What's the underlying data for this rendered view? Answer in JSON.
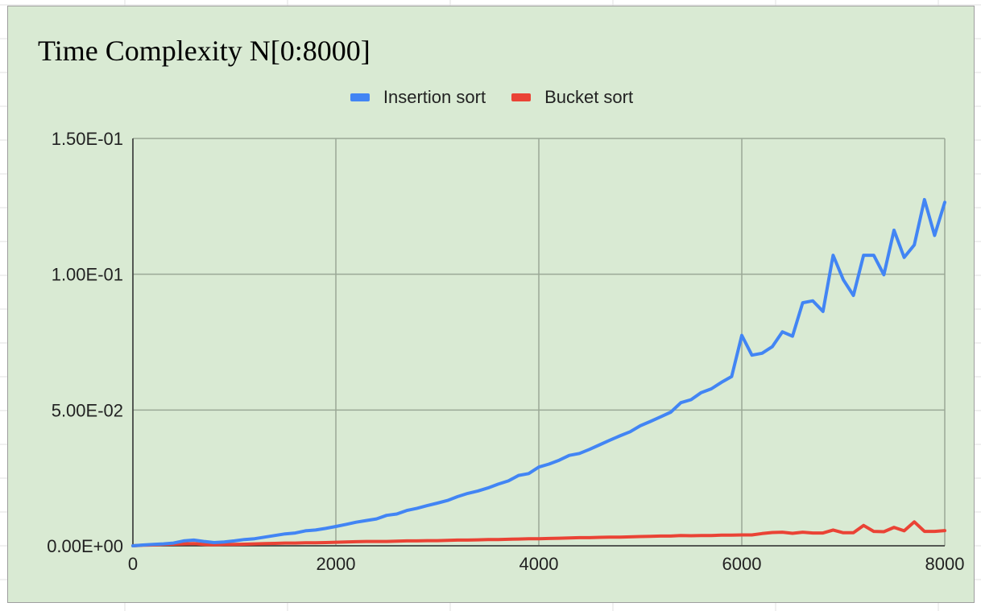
{
  "colors": {
    "background": "#d9ead3",
    "insertion": "#4285f4",
    "bucket": "#ea4335",
    "gridline": "#9aa896",
    "axis": "#333333"
  },
  "chart_data": {
    "type": "line",
    "title": "Time Complexity N[0:8000]",
    "xlabel": "",
    "ylabel": "",
    "xlim": [
      0,
      8000
    ],
    "ylim": [
      0,
      0.15
    ],
    "x_ticks": [
      0,
      2000,
      4000,
      6000,
      8000
    ],
    "x_tick_labels": [
      "0",
      "2000",
      "4000",
      "6000",
      "8000"
    ],
    "y_ticks": [
      0,
      0.05,
      0.1,
      0.15
    ],
    "y_tick_labels": [
      "0.00E+00",
      "5.00E-02",
      "1.00E-01",
      "1.50E-01"
    ],
    "grid": true,
    "legend_position": "top",
    "series": [
      {
        "name": "Insertion sort",
        "color": "#4285f4",
        "points": [
          [
            0,
            0
          ],
          [
            100,
            0.0003
          ],
          [
            200,
            0.0005
          ],
          [
            300,
            0.0007
          ],
          [
            400,
            0.001
          ],
          [
            500,
            0.0018
          ],
          [
            600,
            0.0021
          ],
          [
            700,
            0.0016
          ],
          [
            800,
            0.0012
          ],
          [
            900,
            0.0014
          ],
          [
            1000,
            0.0018
          ],
          [
            1100,
            0.0023
          ],
          [
            1200,
            0.0026
          ],
          [
            1300,
            0.0032
          ],
          [
            1400,
            0.0038
          ],
          [
            1500,
            0.0044
          ],
          [
            1600,
            0.0047
          ],
          [
            1700,
            0.0055
          ],
          [
            1800,
            0.0058
          ],
          [
            1900,
            0.0064
          ],
          [
            2000,
            0.0071
          ],
          [
            2100,
            0.0079
          ],
          [
            2200,
            0.0087
          ],
          [
            2300,
            0.0093
          ],
          [
            2400,
            0.0099
          ],
          [
            2500,
            0.0112
          ],
          [
            2600,
            0.0117
          ],
          [
            2700,
            0.013
          ],
          [
            2800,
            0.0138
          ],
          [
            2900,
            0.0148
          ],
          [
            3000,
            0.0157
          ],
          [
            3100,
            0.0167
          ],
          [
            3200,
            0.0181
          ],
          [
            3300,
            0.0193
          ],
          [
            3400,
            0.0202
          ],
          [
            3500,
            0.0213
          ],
          [
            3600,
            0.0227
          ],
          [
            3700,
            0.0239
          ],
          [
            3800,
            0.0259
          ],
          [
            3900,
            0.0266
          ],
          [
            4000,
            0.029
          ],
          [
            4100,
            0.0301
          ],
          [
            4200,
            0.0315
          ],
          [
            4300,
            0.0333
          ],
          [
            4400,
            0.034
          ],
          [
            4500,
            0.0355
          ],
          [
            4600,
            0.0372
          ],
          [
            4700,
            0.0389
          ],
          [
            4800,
            0.0405
          ],
          [
            4900,
            0.042
          ],
          [
            5000,
            0.0442
          ],
          [
            5100,
            0.0458
          ],
          [
            5200,
            0.0475
          ],
          [
            5300,
            0.0492
          ],
          [
            5400,
            0.0527
          ],
          [
            5500,
            0.0538
          ],
          [
            5600,
            0.0564
          ],
          [
            5700,
            0.0578
          ],
          [
            5800,
            0.0602
          ],
          [
            5900,
            0.0623
          ],
          [
            6000,
            0.0775
          ],
          [
            6100,
            0.0702
          ],
          [
            6200,
            0.0709
          ],
          [
            6300,
            0.0733
          ],
          [
            6400,
            0.0788
          ],
          [
            6500,
            0.0772
          ],
          [
            6600,
            0.0895
          ],
          [
            6700,
            0.0902
          ],
          [
            6800,
            0.0863
          ],
          [
            6900,
            0.107
          ],
          [
            7000,
            0.098
          ],
          [
            7100,
            0.0922
          ],
          [
            7200,
            0.107
          ],
          [
            7300,
            0.107
          ],
          [
            7400,
            0.0998
          ],
          [
            7500,
            0.1162
          ],
          [
            7600,
            0.1062
          ],
          [
            7700,
            0.1108
          ],
          [
            7800,
            0.1275
          ],
          [
            7900,
            0.1143
          ],
          [
            8000,
            0.1265
          ]
        ]
      },
      {
        "name": "Bucket sort",
        "color": "#ea4335",
        "points": [
          [
            0,
            0
          ],
          [
            100,
            0.0002
          ],
          [
            200,
            0.0003
          ],
          [
            300,
            0.0005
          ],
          [
            400,
            0.0006
          ],
          [
            500,
            0.0007
          ],
          [
            600,
            0.0008
          ],
          [
            700,
            0.0005
          ],
          [
            800,
            0.0004
          ],
          [
            900,
            0.0005
          ],
          [
            1000,
            0.0005
          ],
          [
            1100,
            0.0006
          ],
          [
            1200,
            0.0007
          ],
          [
            1300,
            0.0008
          ],
          [
            1400,
            0.0009
          ],
          [
            1500,
            0.001
          ],
          [
            1600,
            0.001
          ],
          [
            1700,
            0.0011
          ],
          [
            1800,
            0.0011
          ],
          [
            1900,
            0.0012
          ],
          [
            2000,
            0.0013
          ],
          [
            2100,
            0.0014
          ],
          [
            2200,
            0.0015
          ],
          [
            2300,
            0.0016
          ],
          [
            2400,
            0.0016
          ],
          [
            2500,
            0.0016
          ],
          [
            2600,
            0.0017
          ],
          [
            2700,
            0.0018
          ],
          [
            2800,
            0.0018
          ],
          [
            2900,
            0.0019
          ],
          [
            3000,
            0.0019
          ],
          [
            3100,
            0.002
          ],
          [
            3200,
            0.0021
          ],
          [
            3300,
            0.0021
          ],
          [
            3400,
            0.0022
          ],
          [
            3500,
            0.0023
          ],
          [
            3600,
            0.0023
          ],
          [
            3700,
            0.0024
          ],
          [
            3800,
            0.0025
          ],
          [
            3900,
            0.0026
          ],
          [
            4000,
            0.0026
          ],
          [
            4100,
            0.0027
          ],
          [
            4200,
            0.0028
          ],
          [
            4300,
            0.0029
          ],
          [
            4400,
            0.003
          ],
          [
            4500,
            0.003
          ],
          [
            4600,
            0.0031
          ],
          [
            4700,
            0.0032
          ],
          [
            4800,
            0.0032
          ],
          [
            4900,
            0.0033
          ],
          [
            5000,
            0.0034
          ],
          [
            5100,
            0.0035
          ],
          [
            5200,
            0.0036
          ],
          [
            5300,
            0.0036
          ],
          [
            5400,
            0.0038
          ],
          [
            5500,
            0.0037
          ],
          [
            5600,
            0.0038
          ],
          [
            5700,
            0.0038
          ],
          [
            5800,
            0.0039
          ],
          [
            5900,
            0.0039
          ],
          [
            6000,
            0.004
          ],
          [
            6100,
            0.004
          ],
          [
            6200,
            0.0045
          ],
          [
            6300,
            0.0049
          ],
          [
            6400,
            0.005
          ],
          [
            6500,
            0.0046
          ],
          [
            6600,
            0.005
          ],
          [
            6700,
            0.0047
          ],
          [
            6800,
            0.0047
          ],
          [
            6900,
            0.0058
          ],
          [
            7000,
            0.0048
          ],
          [
            7100,
            0.0048
          ],
          [
            7200,
            0.0075
          ],
          [
            7300,
            0.0053
          ],
          [
            7400,
            0.0052
          ],
          [
            7500,
            0.0068
          ],
          [
            7600,
            0.0055
          ],
          [
            7700,
            0.0088
          ],
          [
            7800,
            0.0053
          ],
          [
            7900,
            0.0053
          ],
          [
            8000,
            0.0056
          ]
        ]
      }
    ]
  }
}
